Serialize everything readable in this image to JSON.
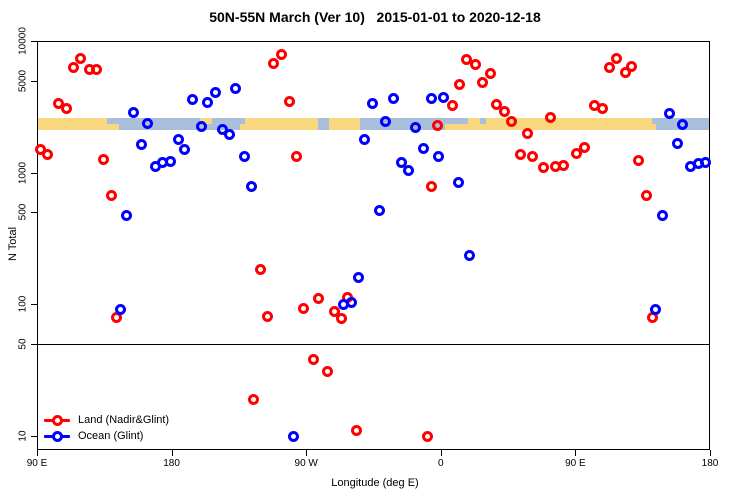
{
  "title": "50N-55N March (Ver 10)   2015-01-01 to 2020-12-18",
  "chart_data": {
    "type": "scatter",
    "title": "50N-55N March (Ver 10)   2015-01-01 to 2020-12-18",
    "xlabel": "Longitude (deg E)",
    "ylabel": "N Total",
    "y_scale": "log",
    "ylim": [
      10,
      10000
    ],
    "y_ticks": [
      {
        "label": "10000",
        "value": 10000
      },
      {
        "label": "5000",
        "value": 5000
      },
      {
        "label": "1000",
        "value": 1000
      },
      {
        "label": "500",
        "value": 500
      },
      {
        "label": "100",
        "value": 100
      },
      {
        "label": "50",
        "value": 50
      },
      {
        "label": "10",
        "value": 10
      }
    ],
    "x_axis_note": "axis spans 450 deg of longitude: 90E -> 180 -> 90W -> 0 -> 90E -> 180; deg = degrees east of 90E",
    "x_ticks": [
      {
        "label": "90 E",
        "deg": 0
      },
      {
        "label": "180",
        "deg": 90
      },
      {
        "label": "90 W",
        "deg": 180
      },
      {
        "label": "0",
        "deg": 270
      },
      {
        "label": "90 E",
        "deg": 360
      },
      {
        "label": "180",
        "deg": 450
      }
    ],
    "hline_at": 50,
    "grid": false,
    "legend_position": "bottom-left",
    "legend": [
      {
        "label": "Land (Nadir&Glint)",
        "color": "#ff0000"
      },
      {
        "label": "Ocean (Glint)",
        "color": "#0000ff"
      }
    ],
    "map_band": {
      "description": "land/ocean map strip for the 50N-55N latitude band, drawn across the plot near N=2100-2700",
      "land_color": "#f9d77e",
      "ocean_color": "#a9bfdb",
      "segments": [
        {
          "from": 0,
          "to": 55,
          "type": "land"
        },
        {
          "from": 55,
          "to": 139,
          "type": "ocean"
        },
        {
          "from": 139,
          "to": 188,
          "type": "land"
        },
        {
          "from": 188,
          "to": 195,
          "type": "ocean"
        },
        {
          "from": 195,
          "to": 216,
          "type": "land"
        },
        {
          "from": 216,
          "to": 273,
          "type": "ocean"
        },
        {
          "from": 273,
          "to": 411,
          "type": "land"
        },
        {
          "from": 411,
          "to": 450,
          "type": "ocean"
        }
      ],
      "patches": [
        {
          "from": 47,
          "to": 55,
          "type": "ocean",
          "half": "top"
        },
        {
          "from": 109,
          "to": 117,
          "type": "land",
          "half": "top"
        },
        {
          "from": 136,
          "to": 139,
          "type": "land",
          "half": "bottom"
        },
        {
          "from": 273,
          "to": 288,
          "type": "ocean",
          "half": "top"
        },
        {
          "from": 296,
          "to": 300,
          "type": "ocean",
          "half": "top"
        },
        {
          "from": 407,
          "to": 414,
          "type": "land",
          "half": "bottom"
        }
      ]
    },
    "series": [
      {
        "name": "Land (Nadir&Glint)",
        "color": "#ff0000",
        "points": [
          [
            2.5,
            1510
          ],
          [
            6.9,
            1370
          ],
          [
            14.7,
            3370
          ],
          [
            19.6,
            3100
          ],
          [
            24.7,
            6300
          ],
          [
            29.2,
            7450
          ],
          [
            35.2,
            6100
          ],
          [
            39.6,
            6100
          ],
          [
            44.7,
            1260
          ],
          [
            49.9,
            670
          ],
          [
            53.2,
            79
          ],
          [
            144.7,
            19
          ],
          [
            149.6,
            184
          ],
          [
            154,
            81
          ],
          [
            158.4,
            6800
          ],
          [
            163.4,
            7900
          ],
          [
            169.1,
            3480
          ],
          [
            173.6,
            1330
          ],
          [
            178.5,
            93
          ],
          [
            185.1,
            38
          ],
          [
            188.1,
            111
          ],
          [
            194.1,
            31
          ],
          [
            199.2,
            89
          ],
          [
            203.6,
            78
          ],
          [
            207.8,
            113
          ],
          [
            213.4,
            11
          ],
          [
            260.9,
            10
          ],
          [
            263.7,
            790
          ],
          [
            268,
            2300
          ],
          [
            277.5,
            3250
          ],
          [
            282.6,
            4650
          ],
          [
            287.5,
            7300
          ],
          [
            293.1,
            6700
          ],
          [
            297.6,
            4850
          ],
          [
            303.3,
            5700
          ],
          [
            307.3,
            3300
          ],
          [
            312.3,
            2900
          ],
          [
            317.5,
            2450
          ],
          [
            323.3,
            1370
          ],
          [
            328.3,
            1980
          ],
          [
            331.2,
            1320
          ],
          [
            339,
            1090
          ],
          [
            343.4,
            2640
          ],
          [
            346.7,
            1120
          ],
          [
            352.3,
            1130
          ],
          [
            360.7,
            1410
          ],
          [
            366.1,
            1570
          ],
          [
            372.8,
            3250
          ],
          [
            377.9,
            3100
          ],
          [
            383,
            6300
          ],
          [
            387.4,
            7450
          ],
          [
            393.4,
            5800
          ],
          [
            397.4,
            6450
          ],
          [
            402.4,
            1250
          ],
          [
            407.7,
            670
          ],
          [
            411.5,
            80
          ]
        ]
      },
      {
        "name": "Ocean (Glint)",
        "color": "#0000ff",
        "points": [
          [
            55.6,
            91
          ],
          [
            59.9,
            470
          ],
          [
            64.8,
            2850
          ],
          [
            69.9,
            1630
          ],
          [
            73.6,
            2350
          ],
          [
            79.2,
            1110
          ],
          [
            84.1,
            1190
          ],
          [
            89.3,
            1210
          ],
          [
            94.8,
            1800
          ],
          [
            98.8,
            1510
          ],
          [
            104.2,
            3600
          ],
          [
            109.7,
            2250
          ],
          [
            113.7,
            3400
          ],
          [
            119.3,
            4100
          ],
          [
            124.2,
            2150
          ],
          [
            128.6,
            1950
          ],
          [
            132.7,
            4400
          ],
          [
            138.7,
            1320
          ],
          [
            143.5,
            790
          ],
          [
            171.8,
            10
          ],
          [
            205.2,
            99
          ],
          [
            210.1,
            103
          ],
          [
            214.8,
            160
          ],
          [
            219,
            1800
          ],
          [
            224.1,
            3350
          ],
          [
            229,
            515
          ],
          [
            233,
            2450
          ],
          [
            238.6,
            3650
          ],
          [
            243.5,
            1190
          ],
          [
            248.6,
            1050
          ],
          [
            253.3,
            2200
          ],
          [
            258.6,
            1520
          ],
          [
            263.5,
            3650
          ],
          [
            268.6,
            1320
          ],
          [
            271.5,
            3750
          ],
          [
            282,
            840
          ],
          [
            289.3,
            235
          ],
          [
            413.3,
            91
          ],
          [
            418.4,
            470
          ],
          [
            423.1,
            2800
          ],
          [
            428.4,
            1680
          ],
          [
            431.3,
            2330
          ],
          [
            436.8,
            1110
          ],
          [
            442.4,
            1180
          ],
          [
            446.8,
            1200
          ]
        ]
      }
    ]
  }
}
